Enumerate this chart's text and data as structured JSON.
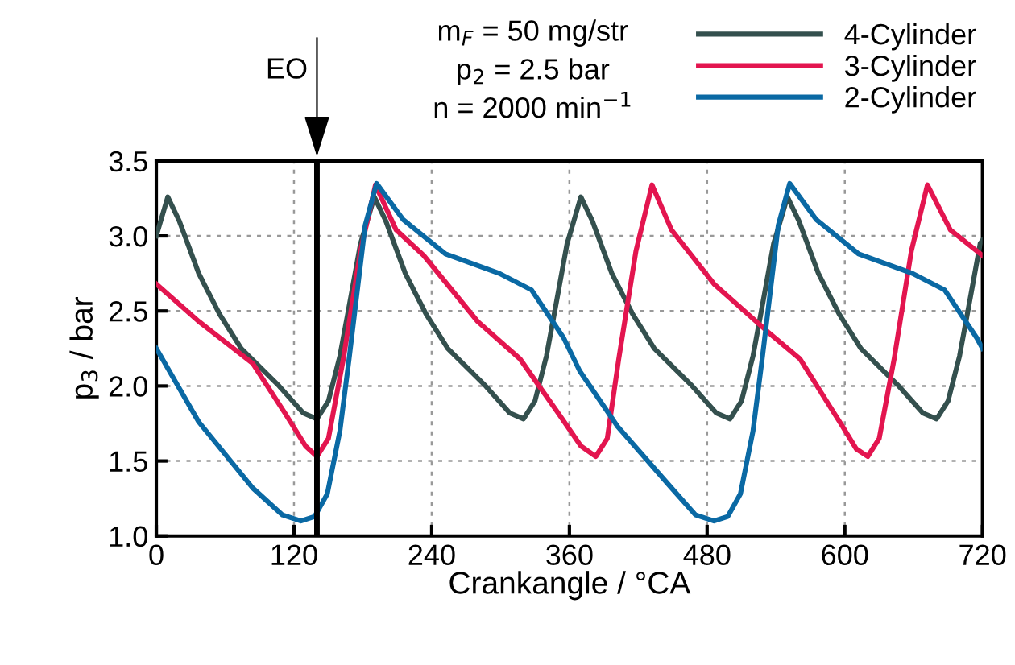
{
  "chart_data": {
    "type": "line",
    "xlabel": "Crankangle / °CA",
    "ylabel": "p$_{3}$ / bar",
    "xlim": [
      0,
      720
    ],
    "xticks": [
      0,
      120,
      240,
      360,
      480,
      600,
      720
    ],
    "ylim": [
      1.0,
      3.5
    ],
    "yticks": [
      {
        "value": 1.0,
        "label": "1.0"
      },
      {
        "value": 1.5,
        "label": "1.5"
      },
      {
        "value": 2.0,
        "label": "2.0"
      },
      {
        "value": 2.5,
        "label": "2.5"
      },
      {
        "value": 3.0,
        "label": "3.0"
      },
      {
        "value": 3.5,
        "label": "3.5"
      }
    ],
    "grid": true,
    "legend": "top right",
    "line_style": "solid",
    "marker": "none",
    "annotations": [
      "m$_{F}$ = 50 mg/str",
      "p$_{2}$ = 2.5 bar",
      "n = 2000 min$^{−1}$"
    ],
    "ref_lines": [
      {
        "axis": "x",
        "value": 140,
        "label": "EO",
        "color": "#000000"
      }
    ],
    "series": [
      {
        "name": "4-Cylinder",
        "color": "#34504e",
        "x": [
          0,
          10,
          20,
          37,
          55,
          74,
          107,
          128,
          140,
          150,
          160,
          168,
          178,
          180,
          190,
          200,
          217,
          235,
          254,
          287,
          308,
          320,
          330,
          340,
          348,
          358,
          360,
          370,
          380,
          397,
          415,
          434,
          467,
          488,
          500,
          510,
          520,
          528,
          538,
          540,
          550,
          560,
          577,
          595,
          614,
          647,
          668,
          680,
          690,
          700,
          708,
          718,
          720
        ],
        "values": [
          3.0,
          3.26,
          3.1,
          2.75,
          2.48,
          2.25,
          2.0,
          1.82,
          1.78,
          1.9,
          2.2,
          2.53,
          2.95,
          3.0,
          3.26,
          3.1,
          2.75,
          2.48,
          2.25,
          2.0,
          1.82,
          1.78,
          1.9,
          2.2,
          2.53,
          2.95,
          3.0,
          3.26,
          3.1,
          2.75,
          2.48,
          2.25,
          2.0,
          1.82,
          1.78,
          1.9,
          2.2,
          2.53,
          2.95,
          3.0,
          3.26,
          3.1,
          2.75,
          2.48,
          2.25,
          2.0,
          1.82,
          1.78,
          1.9,
          2.2,
          2.53,
          2.95,
          2.97
        ]
      },
      {
        "name": "3-Cylinder",
        "color": "#e3154f",
        "x": [
          0,
          37,
          84,
          112,
          130,
          140,
          150,
          163,
          178,
          191,
          209,
          233,
          280,
          317,
          352,
          370,
          383,
          393,
          403,
          418,
          432,
          449,
          486,
          533,
          561,
          598,
          610,
          620,
          630,
          643,
          658,
          672,
          692,
          720
        ],
        "values": [
          2.68,
          2.43,
          2.15,
          1.82,
          1.6,
          1.53,
          1.65,
          2.18,
          2.9,
          3.34,
          3.04,
          2.87,
          2.43,
          2.18,
          1.8,
          1.6,
          1.53,
          1.65,
          2.18,
          2.9,
          3.34,
          3.04,
          2.68,
          2.36,
          2.18,
          1.73,
          1.58,
          1.53,
          1.65,
          2.18,
          2.9,
          3.34,
          3.04,
          2.87
        ]
      },
      {
        "name": "2-Cylinder",
        "color": "#0a69a4",
        "x": [
          0,
          37,
          84,
          110,
          126,
          138,
          149,
          160,
          168,
          182,
          192,
          215,
          252,
          299,
          327,
          355,
          369,
          402,
          449,
          470,
          486,
          498,
          509,
          520,
          528,
          542,
          552,
          575,
          612,
          659,
          687,
          715,
          720
        ],
        "values": [
          2.25,
          1.76,
          1.32,
          1.14,
          1.1,
          1.13,
          1.28,
          1.7,
          2.18,
          3.07,
          3.35,
          3.11,
          2.88,
          2.75,
          2.64,
          2.32,
          2.1,
          1.73,
          1.32,
          1.14,
          1.1,
          1.13,
          1.28,
          1.7,
          2.18,
          3.07,
          3.35,
          3.11,
          2.88,
          2.75,
          2.64,
          2.32,
          2.25
        ]
      }
    ]
  }
}
